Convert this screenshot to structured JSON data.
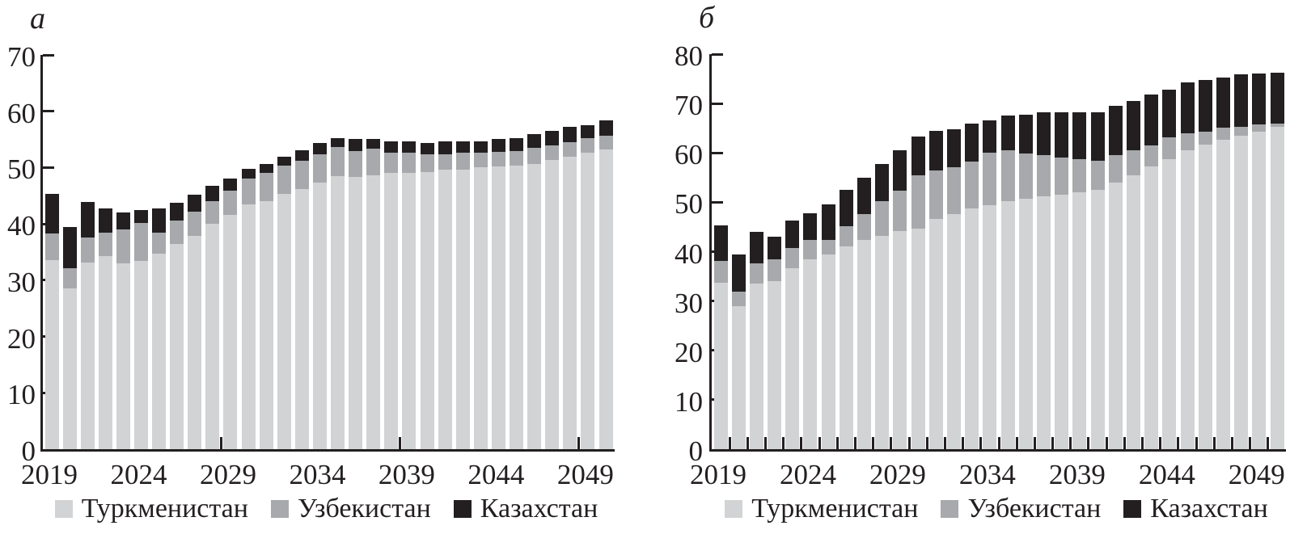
{
  "figure_label_left": "а",
  "figure_label_right": "б",
  "colors": {
    "turkmenistan": "#d1d3d4",
    "uzbekistan": "#a7a9ac",
    "kazakhstan": "#231f20",
    "axis": "#231f20"
  },
  "legend_items": [
    {
      "label": "Туркменистан",
      "swatch": "turkmenistan-swatch",
      "color": "#d1d3d4"
    },
    {
      "label": "Узбекистан",
      "swatch": "uzbekistan-swatch",
      "color": "#a7a9ac"
    },
    {
      "label": "Казахстан",
      "swatch": "kazakhstan-swatch",
      "color": "#231f20"
    }
  ],
  "chart_data": [
    {
      "type": "bar",
      "stacked": true,
      "panel_label": "а",
      "x": [
        2019,
        2020,
        2021,
        2022,
        2023,
        2024,
        2025,
        2026,
        2027,
        2028,
        2029,
        2030,
        2031,
        2032,
        2033,
        2034,
        2035,
        2036,
        2037,
        2038,
        2039,
        2040,
        2041,
        2042,
        2043,
        2044,
        2045,
        2046,
        2047,
        2048,
        2049,
        2050
      ],
      "series": [
        {
          "name": "Туркменистан",
          "color": "#d1d3d4",
          "values": [
            33.6,
            28.6,
            33.1,
            34.3,
            33.0,
            33.4,
            34.7,
            36.5,
            37.9,
            40.0,
            41.6,
            43.4,
            44.0,
            45.4,
            46.2,
            47.3,
            48.5,
            48.4,
            48.7,
            49.0,
            49.1,
            49.2,
            49.6,
            49.7,
            50.0,
            50.2,
            50.4,
            50.6,
            51.4,
            51.9,
            52.6,
            53.2
          ]
        },
        {
          "name": "Узбекистан",
          "color": "#a7a9ac",
          "values": [
            4.7,
            3.6,
            4.5,
            4.1,
            6.0,
            6.8,
            3.8,
            4.1,
            4.3,
            4.1,
            4.3,
            4.6,
            5.0,
            4.9,
            5.0,
            5.1,
            5.1,
            4.6,
            4.6,
            3.7,
            3.5,
            3.2,
            2.8,
            3.0,
            2.6,
            2.6,
            2.6,
            2.9,
            2.6,
            2.6,
            2.6,
            2.4
          ]
        },
        {
          "name": "Казахстан",
          "color": "#231f20",
          "values": [
            7.1,
            7.3,
            6.3,
            4.4,
            3.0,
            2.3,
            4.3,
            3.1,
            3.0,
            2.7,
            2.1,
            1.8,
            1.6,
            1.7,
            1.9,
            2.0,
            1.6,
            2.1,
            1.8,
            2.0,
            2.0,
            2.0,
            2.3,
            1.9,
            2.1,
            2.3,
            2.2,
            2.5,
            2.5,
            2.8,
            2.3,
            2.8
          ]
        }
      ],
      "ylim": [
        0,
        70
      ],
      "ytick_step": 10,
      "ytick_labels": [
        "0",
        "10",
        "20",
        "30",
        "40",
        "50",
        "60",
        "70"
      ],
      "xtick_labels": [
        "2019",
        "2024",
        "2029",
        "2034",
        "2039",
        "2044",
        "2049"
      ],
      "xtick_label_years": [
        2019,
        2024,
        2029,
        2034,
        2039,
        2044,
        2049
      ],
      "x_inner_ticks": {
        "mode": "years",
        "years": [
          2029,
          2039,
          2049
        ]
      },
      "grid": false,
      "legend_position": "bottom"
    },
    {
      "type": "bar",
      "stacked": true,
      "panel_label": "б",
      "x": [
        2019,
        2020,
        2021,
        2022,
        2023,
        2024,
        2025,
        2026,
        2027,
        2028,
        2029,
        2030,
        2031,
        2032,
        2033,
        2034,
        2035,
        2036,
        2037,
        2038,
        2039,
        2040,
        2041,
        2042,
        2043,
        2044,
        2045,
        2046,
        2047,
        2048,
        2049,
        2050
      ],
      "series": [
        {
          "name": "Туркменистан",
          "color": "#d1d3d4",
          "values": [
            33.7,
            28.9,
            33.6,
            34.1,
            36.6,
            38.5,
            39.5,
            41.0,
            42.4,
            43.2,
            44.1,
            44.7,
            46.6,
            47.6,
            48.7,
            49.4,
            50.3,
            50.7,
            51.2,
            51.5,
            52.1,
            52.5,
            54.0,
            55.4,
            57.2,
            58.7,
            60.5,
            61.6,
            62.6,
            63.5,
            64.3,
            65.2
          ]
        },
        {
          "name": "Узбекистан",
          "color": "#a7a9ac",
          "values": [
            4.4,
            3.0,
            4.0,
            4.4,
            4.1,
            3.9,
            2.8,
            4.1,
            5.2,
            7.0,
            8.3,
            10.8,
            9.8,
            9.5,
            9.6,
            10.7,
            10.2,
            9.2,
            8.3,
            7.6,
            6.6,
            5.9,
            5.5,
            5.1,
            4.3,
            4.5,
            3.5,
            2.7,
            2.5,
            1.8,
            1.4,
            0.8
          ]
        },
        {
          "name": "Казахстан",
          "color": "#231f20",
          "values": [
            7.3,
            7.5,
            6.4,
            4.5,
            5.6,
            5.3,
            7.3,
            7.4,
            7.4,
            7.5,
            8.1,
            7.8,
            8.0,
            7.7,
            7.7,
            6.5,
            7.1,
            7.8,
            8.7,
            9.1,
            9.5,
            9.8,
            10.0,
            10.0,
            10.3,
            9.6,
            10.3,
            10.5,
            10.1,
            10.6,
            10.3,
            10.3
          ]
        }
      ],
      "ylim": [
        0,
        80
      ],
      "ytick_step": 10,
      "ytick_labels": [
        "0",
        "10",
        "20",
        "30",
        "40",
        "50",
        "60",
        "70",
        "80"
      ],
      "xtick_labels": [
        "2019",
        "2024",
        "2029",
        "2034",
        "2039",
        "2044",
        "2049"
      ],
      "xtick_label_years": [
        2019,
        2024,
        2029,
        2034,
        2039,
        2044,
        2049
      ],
      "x_inner_ticks": {
        "mode": "gaps_all"
      },
      "grid": false,
      "legend_position": "bottom"
    }
  ]
}
